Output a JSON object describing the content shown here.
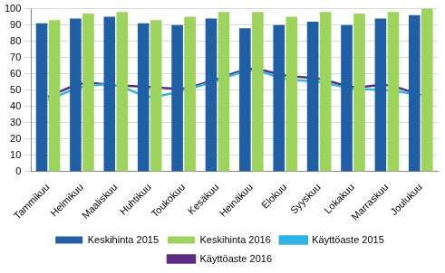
{
  "chart_data": {
    "type": "bar",
    "categories": [
      "Tammikuu",
      "Helmikuu",
      "Maaliskuu",
      "Huhtikuu",
      "Toukokuu",
      "Kesäkuu",
      "Heinäkuu",
      "Elokuu",
      "Syyskuu",
      "Lokakuu",
      "Marraskuu",
      "Joulukuu"
    ],
    "series": [
      {
        "name": "Keskihinta 2015",
        "type": "bar",
        "color": "#1f5fa6",
        "values": [
          91,
          94,
          95,
          91,
          90,
          94,
          88,
          90,
          92,
          90,
          94,
          96
        ]
      },
      {
        "name": "Keskihinta 2016",
        "type": "bar",
        "color": "#9dd45c",
        "values": [
          93,
          97,
          98,
          93,
          95,
          98,
          98,
          95,
          98,
          97,
          98,
          100
        ]
      },
      {
        "name": "Käyttöaste 2015",
        "type": "line",
        "color": "#2bb5e8",
        "values": [
          44,
          52,
          53,
          46,
          50,
          56,
          62,
          57,
          55,
          51,
          50,
          47
        ]
      },
      {
        "name": "Käyttöaste 2016",
        "type": "line",
        "color": "#5c2b83",
        "values": [
          46,
          54,
          53,
          52,
          51,
          57,
          63,
          59,
          57,
          52,
          53,
          47
        ]
      }
    ],
    "ylim": [
      0,
      100
    ],
    "yticks": [
      0,
      10,
      20,
      30,
      40,
      50,
      60,
      70,
      80,
      90,
      100
    ],
    "grid": true,
    "legend": "bottom"
  }
}
